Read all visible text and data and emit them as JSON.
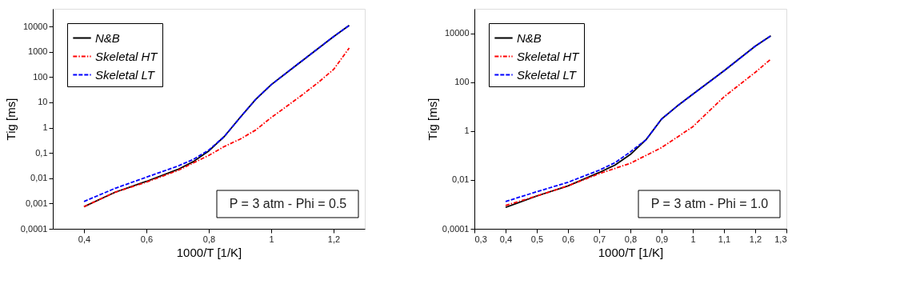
{
  "chart_data": [
    {
      "type": "line",
      "xlabel": "1000/T [1/K]",
      "ylabel": "Tig [ms]",
      "log": "y",
      "grid": false,
      "legend": "top left",
      "marker": "none",
      "xlim": [
        0.3,
        1.3
      ],
      "xticks": [
        {
          "value": 0.4,
          "label": "0,4"
        },
        {
          "value": 0.6,
          "label": "0,6"
        },
        {
          "value": 0.8,
          "label": "0,8"
        },
        1,
        {
          "value": 1.2,
          "label": "1,2"
        }
      ],
      "ylim": [
        0.0001,
        50000
      ],
      "yticks": [
        {
          "value": 0.0001,
          "label": "0,0001"
        },
        {
          "value": 0.001,
          "label": "0,001"
        },
        {
          "value": 0.01,
          "label": "0,01"
        },
        {
          "value": 0.1,
          "label": "0,1"
        },
        1,
        10,
        100,
        1000,
        10000
      ],
      "annotations": [
        "P = 3 atm - Phi = 0.5"
      ],
      "series": [
        {
          "name": "N&B",
          "color": "#000000",
          "line_style": "solid",
          "x": [
            0.4,
            0.5,
            0.6,
            0.7,
            0.75,
            0.8,
            0.85,
            0.9,
            0.95,
            1.0,
            1.05,
            1.1,
            1.2,
            1.25
          ],
          "values": [
            0.00075,
            0.0028,
            0.0075,
            0.022,
            0.045,
            0.12,
            0.45,
            2.5,
            13,
            50,
            150,
            450,
            4000,
            11000
          ]
        },
        {
          "name": "Skeletal HT",
          "color": "#ff0000",
          "line_style": "dashdot",
          "x": [
            0.4,
            0.5,
            0.6,
            0.7,
            0.75,
            0.8,
            0.85,
            0.9,
            0.95,
            1.0,
            1.05,
            1.1,
            1.15,
            1.2,
            1.25
          ],
          "values": [
            0.00075,
            0.0028,
            0.007,
            0.02,
            0.04,
            0.08,
            0.18,
            0.35,
            0.8,
            2.5,
            7,
            20,
            60,
            200,
            1400
          ]
        },
        {
          "name": "Skeletal LT",
          "color": "#0000ff",
          "line_style": "dashed",
          "x": [
            0.4,
            0.5,
            0.6,
            0.7,
            0.75,
            0.8,
            0.85,
            0.9,
            0.95,
            1.0,
            1.05,
            1.1,
            1.2,
            1.25
          ],
          "values": [
            0.0012,
            0.004,
            0.011,
            0.03,
            0.055,
            0.13,
            0.45,
            2.5,
            13,
            50,
            150,
            450,
            4000,
            11000
          ]
        }
      ]
    },
    {
      "type": "line",
      "xlabel": "1000/T [1/K]",
      "ylabel": "Tig [ms]",
      "log": "y",
      "grid": false,
      "legend": "top left",
      "marker": "none",
      "xlim": [
        0.3,
        1.3
      ],
      "xticks": [
        {
          "value": 0.3,
          "label": "0,3"
        },
        {
          "value": 0.4,
          "label": "0,4"
        },
        {
          "value": 0.5,
          "label": "0,5"
        },
        {
          "value": 0.6,
          "label": "0,6"
        },
        {
          "value": 0.7,
          "label": "0,7"
        },
        {
          "value": 0.8,
          "label": "0,8"
        },
        {
          "value": 0.9,
          "label": "0,9"
        },
        1,
        {
          "value": 1.1,
          "label": "1,1"
        },
        {
          "value": 1.2,
          "label": "1,2"
        },
        {
          "value": 1.3,
          "label": "1,3"
        }
      ],
      "ylim": [
        0.0001,
        100000
      ],
      "yticks": [
        {
          "value": 0.0001,
          "label": "0,0001"
        },
        {
          "value": 0.01,
          "label": "0,01"
        },
        1,
        100,
        10000
      ],
      "annotations": [
        "P = 3 atm - Phi = 1.0"
      ],
      "series": [
        {
          "name": "N&B",
          "color": "#000000",
          "line_style": "solid",
          "x": [
            0.4,
            0.5,
            0.6,
            0.7,
            0.75,
            0.8,
            0.85,
            0.9,
            0.95,
            1.0,
            1.1,
            1.2,
            1.25
          ],
          "values": [
            0.00075,
            0.0022,
            0.0057,
            0.02,
            0.04,
            0.11,
            0.44,
            3.1,
            10.5,
            32,
            290,
            2950,
            7800
          ]
        },
        {
          "name": "Skeletal HT",
          "color": "#ff0000",
          "line_style": "dashdot",
          "x": [
            0.4,
            0.5,
            0.6,
            0.7,
            0.8,
            0.9,
            1.0,
            1.1,
            1.2,
            1.25
          ],
          "values": [
            0.0009,
            0.0022,
            0.0057,
            0.018,
            0.048,
            0.21,
            1.5,
            25,
            250,
            870
          ]
        },
        {
          "name": "Skeletal LT",
          "color": "#0000ff",
          "line_style": "dashed",
          "x": [
            0.4,
            0.5,
            0.6,
            0.7,
            0.75,
            0.8,
            0.85,
            0.9,
            0.95,
            1.0,
            1.1,
            1.2,
            1.25
          ],
          "values": [
            0.0013,
            0.0033,
            0.008,
            0.025,
            0.05,
            0.14,
            0.44,
            3.1,
            10.5,
            32,
            290,
            2950,
            7800
          ]
        }
      ]
    }
  ]
}
